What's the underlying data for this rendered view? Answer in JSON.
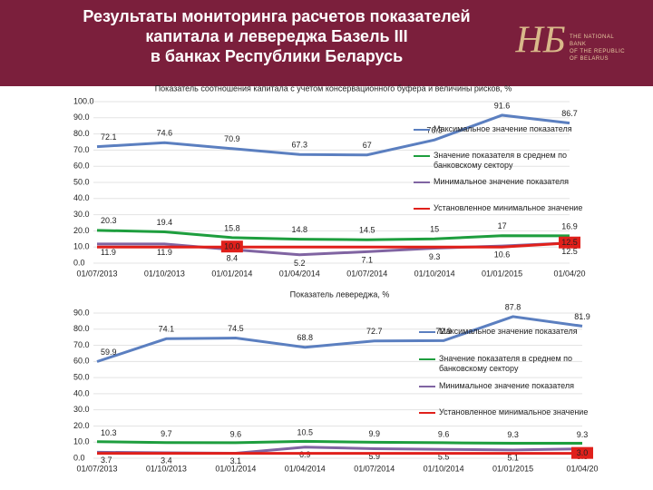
{
  "header": {
    "title_lines": [
      "Результаты мониторинга расчетов показателей",
      "капитала и левереджа Базель III",
      "в банках Республики Беларусь"
    ],
    "logo_lines": [
      "THE NATIONAL",
      "BANK",
      "OF THE REPUBLIC",
      "OF BELARUS"
    ]
  },
  "chart_data": [
    {
      "type": "line",
      "title": "Показатель соотношения капитала с учетом консервационного буфера и величины рисков, %",
      "categories": [
        "01/07/2013",
        "01/10/2013",
        "01/01/2014",
        "01/04/2014",
        "01/07/2014",
        "01/10/2014",
        "01/01/2015",
        "01/04/20"
      ],
      "series": [
        {
          "name": "Максимальное значение показателя",
          "color": "#5b7fc0",
          "values": [
            72.1,
            74.6,
            70.9,
            67.3,
            67.0,
            76.3,
            91.6,
            86.7
          ]
        },
        {
          "name": "Значение показателя в среднем по банковскому сектору",
          "color": "#1e9e3e",
          "values": [
            20.3,
            19.4,
            15.8,
            14.8,
            14.5,
            15.0,
            17.0,
            16.9
          ]
        },
        {
          "name": "Минимальное значение показателя",
          "color": "#8064a2",
          "values": [
            11.9,
            11.9,
            8.4,
            5.2,
            7.1,
            9.3,
            10.6,
            12.5
          ]
        },
        {
          "name": "Установленное минимальное значение",
          "color": "#e0201b",
          "values": [
            10.0,
            10.0,
            10.0,
            10.0,
            10.0,
            10.0,
            10.0,
            12.5
          ],
          "value_labels": [
            null,
            null,
            "10.0",
            null,
            null,
            null,
            null,
            "12.5"
          ]
        }
      ],
      "ylim": [
        0,
        100
      ],
      "yticks": [
        {
          "value": 0,
          "label": "0.0"
        },
        {
          "value": 10,
          "label": "10.0"
        },
        {
          "value": 20,
          "label": "20.0"
        },
        {
          "value": 30,
          "label": "30.0"
        },
        {
          "value": 40,
          "label": "40.0"
        },
        {
          "value": 50,
          "label": "50.0"
        },
        {
          "value": 60,
          "label": "60.0"
        },
        {
          "value": 70,
          "label": "70.0"
        },
        {
          "value": 80,
          "label": "80.0"
        },
        {
          "value": 90,
          "label": "90.0"
        },
        {
          "value": 100,
          "label": "100.0"
        }
      ],
      "grid": true
    },
    {
      "type": "line",
      "title": "Показатель левереджа, %",
      "categories": [
        "01/07/2013",
        "01/10/2013",
        "01/01/2014",
        "01/04/2014",
        "01/07/2014",
        "01/10/2014",
        "01/01/2015",
        "01/04/20"
      ],
      "series": [
        {
          "name": "Максимальное значение показателя",
          "color": "#5b7fc0",
          "values": [
            59.9,
            74.1,
            74.5,
            68.8,
            72.7,
            72.9,
            87.8,
            81.9
          ]
        },
        {
          "name": "Значение показателя в среднем по банковскому сектору",
          "color": "#1e9e3e",
          "values": [
            10.3,
            9.7,
            9.6,
            10.5,
            9.9,
            9.6,
            9.3,
            9.3
          ]
        },
        {
          "name": "Минимальное значение показателя",
          "color": "#8064a2",
          "values": [
            3.7,
            3.4,
            3.1,
            6.9,
            5.9,
            5.5,
            5.1,
            5.8
          ]
        },
        {
          "name": "Установленное минимальное значение",
          "color": "#e0201b",
          "values": [
            3.0,
            3.0,
            3.0,
            3.0,
            3.0,
            3.0,
            3.0,
            3.0
          ],
          "value_labels": [
            null,
            null,
            null,
            null,
            null,
            null,
            null,
            "3.0"
          ]
        }
      ],
      "ylim": [
        0,
        90
      ],
      "yticks": [
        {
          "value": 0,
          "label": "0.0"
        },
        {
          "value": 10,
          "label": "10.0"
        },
        {
          "value": 20,
          "label": "20.0"
        },
        {
          "value": 30,
          "label": "30.0"
        },
        {
          "value": 40,
          "label": "40.0"
        },
        {
          "value": 50,
          "label": "50.0"
        },
        {
          "value": 60,
          "label": "60.0"
        },
        {
          "value": 70,
          "label": "70.0"
        },
        {
          "value": 80,
          "label": "80.0"
        },
        {
          "value": 90,
          "label": "90.0"
        }
      ],
      "grid": true
    }
  ]
}
